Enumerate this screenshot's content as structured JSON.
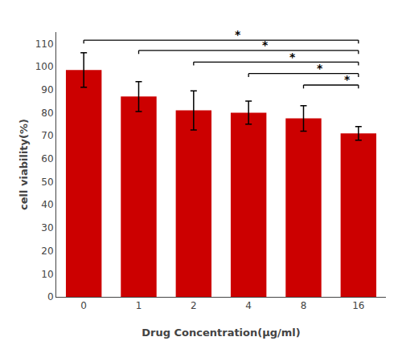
{
  "chart_data": {
    "type": "bar",
    "xlabel": "Drug Concentration(μg/ml)",
    "ylabel": "cell viability(%)",
    "categories": [
      "0",
      "1",
      "2",
      "4",
      "8",
      "16"
    ],
    "values": [
      98.5,
      87.0,
      81.0,
      80.0,
      77.5,
      71.0
    ],
    "errors": [
      7.5,
      6.5,
      8.5,
      5.0,
      5.5,
      3.0
    ],
    "color": "#CC0000",
    "ylim": [
      0,
      115
    ],
    "yticks": [
      0,
      10,
      20,
      30,
      40,
      50,
      60,
      70,
      80,
      90,
      100,
      110
    ],
    "grid": false,
    "brackets": [
      {
        "left": "0",
        "right": "16",
        "y": 111.5,
        "label": "*"
      },
      {
        "left": "1",
        "right": "16",
        "y": 107.0,
        "label": "*"
      },
      {
        "left": "2",
        "right": "16",
        "y": 102.0,
        "label": "*"
      },
      {
        "left": "4",
        "right": "16",
        "y": 97.0,
        "label": "*"
      },
      {
        "left": "8",
        "right": "16",
        "y": 92.0,
        "label": "*"
      }
    ]
  }
}
